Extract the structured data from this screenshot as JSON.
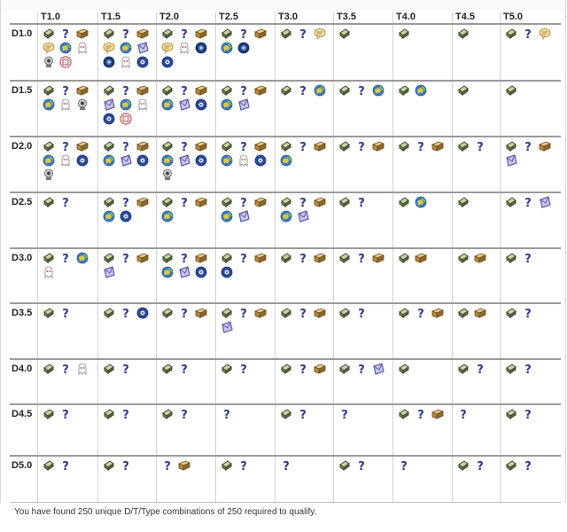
{
  "colors": {
    "traditional": "#7a8a5a",
    "mystery": "#2c3a8c",
    "multi": "#b58a3a",
    "letterbox": "#5a5aa8",
    "earthcache": "#3a7ab8",
    "wherigo": "#1a4a8a",
    "event": "#e8c070",
    "virtual": "#d05858",
    "webcam": "#7a7a7a"
  },
  "grid": {
    "columns": [
      "T1.0",
      "T1.5",
      "T2.0",
      "T2.5",
      "T3.0",
      "T3.5",
      "T4.0",
      "T4.5",
      "T5.0"
    ],
    "rows": [
      {
        "label": "D1.0",
        "cells": [
          [
            "traditional",
            "mystery",
            "multi",
            "event",
            "earthcache",
            "virtual",
            "webcam",
            "cito"
          ],
          [
            "traditional",
            "mystery",
            "multi",
            "event",
            "earthcache",
            "letterbox",
            "wherigo",
            "virtual",
            "gps"
          ],
          [
            "traditional",
            "mystery",
            "multi",
            "event",
            "virtual",
            "wherigo",
            "gps"
          ],
          [
            "traditional",
            "mystery",
            "multi",
            "earthcache",
            "wherigo"
          ],
          [
            "traditional",
            "mystery",
            "event"
          ],
          [
            "traditional"
          ],
          [
            "traditional"
          ],
          [
            "traditional"
          ],
          [
            "traditional",
            "mystery",
            "event"
          ]
        ]
      },
      {
        "label": "D1.5",
        "cells": [
          [
            "traditional",
            "mystery",
            "multi",
            "earthcache",
            "virtual",
            "webcam"
          ],
          [
            "traditional",
            "mystery",
            "multi",
            "letterbox",
            "earthcache",
            "virtual",
            "gps",
            "cito"
          ],
          [
            "traditional",
            "mystery",
            "multi",
            "earthcache",
            "letterbox",
            "gps"
          ],
          [
            "traditional",
            "mystery",
            "multi",
            "earthcache",
            "letterbox"
          ],
          [
            "traditional",
            "mystery",
            "earthcache"
          ],
          [
            "traditional",
            "mystery",
            "earthcache"
          ],
          [
            "traditional",
            "earthcache"
          ],
          [
            "traditional"
          ],
          [
            "traditional"
          ]
        ]
      },
      {
        "label": "D2.0",
        "cells": [
          [
            "traditional",
            "mystery",
            "multi",
            "earthcache",
            "virtual",
            "gps",
            "webcam"
          ],
          [
            "traditional",
            "mystery",
            "multi",
            "earthcache",
            "letterbox",
            "gps"
          ],
          [
            "traditional",
            "mystery",
            "multi",
            "earthcache",
            "letterbox",
            "gps",
            "webcam"
          ],
          [
            "traditional",
            "mystery",
            "multi",
            "earthcache",
            "virtual",
            "gps"
          ],
          [
            "traditional",
            "mystery",
            "multi",
            "earthcache"
          ],
          [
            "traditional",
            "mystery",
            "multi"
          ],
          [
            "traditional",
            "mystery",
            "multi"
          ],
          [
            "traditional",
            "mystery"
          ],
          [
            "traditional",
            "mystery",
            "multi",
            "letterbox"
          ]
        ]
      },
      {
        "label": "D2.5",
        "cells": [
          [
            "traditional",
            "mystery"
          ],
          [
            "traditional",
            "mystery",
            "multi",
            "earthcache",
            "gps"
          ],
          [
            "traditional",
            "mystery",
            "multi",
            "earthcache"
          ],
          [
            "traditional",
            "mystery",
            "multi",
            "earthcache",
            "letterbox"
          ],
          [
            "traditional",
            "mystery",
            "multi",
            "earthcache",
            "letterbox"
          ],
          [
            "traditional",
            "mystery"
          ],
          [
            "traditional",
            "earthcache"
          ],
          [
            "traditional"
          ],
          [
            "traditional",
            "mystery",
            "letterbox"
          ]
        ]
      },
      {
        "label": "D3.0",
        "cells": [
          [
            "traditional",
            "mystery",
            "earthcache",
            "virtual"
          ],
          [
            "traditional",
            "mystery",
            "multi",
            "letterbox"
          ],
          [
            "traditional",
            "mystery",
            "multi",
            "earthcache",
            "letterbox",
            "gps"
          ],
          [
            "traditional",
            "mystery",
            "multi",
            "gps"
          ],
          [
            "traditional",
            "mystery",
            "multi"
          ],
          [
            "traditional",
            "mystery",
            "multi"
          ],
          [
            "traditional",
            "multi"
          ],
          [
            "traditional",
            "multi"
          ],
          [
            "traditional",
            "mystery"
          ]
        ]
      },
      {
        "label": "D3.5",
        "cells": [
          [
            "traditional",
            "mystery"
          ],
          [
            "traditional",
            "mystery",
            "gps"
          ],
          [
            "traditional",
            "mystery",
            "multi"
          ],
          [
            "traditional",
            "mystery",
            "multi",
            "letterbox"
          ],
          [
            "traditional",
            "mystery",
            "multi"
          ],
          [
            "traditional",
            "mystery"
          ],
          [
            "traditional",
            "mystery",
            "multi"
          ],
          [
            "traditional",
            "multi"
          ],
          [
            "traditional",
            "mystery"
          ]
        ]
      },
      {
        "label": "D4.0",
        "cells": [
          [
            "traditional",
            "mystery",
            "virtual"
          ],
          [
            "traditional",
            "mystery"
          ],
          [
            "traditional",
            "mystery"
          ],
          [
            "traditional",
            "mystery"
          ],
          [
            "traditional",
            "mystery",
            "multi"
          ],
          [
            "traditional",
            "mystery",
            "letterbox"
          ],
          [
            "traditional"
          ],
          [
            "traditional",
            "mystery"
          ],
          [
            "traditional",
            "mystery"
          ]
        ]
      },
      {
        "label": "D4.5",
        "cells": [
          [
            "traditional",
            "mystery"
          ],
          [
            "traditional",
            "mystery"
          ],
          [
            "traditional",
            "mystery"
          ],
          [
            "mystery"
          ],
          [
            "traditional",
            "mystery"
          ],
          [
            "mystery"
          ],
          [
            "traditional",
            "mystery",
            "multi"
          ],
          [
            "mystery"
          ],
          [
            "traditional",
            "mystery"
          ]
        ]
      },
      {
        "label": "D5.0",
        "cells": [
          [
            "traditional",
            "mystery"
          ],
          [
            "traditional",
            "mystery"
          ],
          [
            "mystery",
            "multi"
          ],
          [
            "traditional",
            "mystery"
          ],
          [
            "mystery"
          ],
          [
            "traditional",
            "mystery"
          ],
          [
            "mystery"
          ],
          [
            "traditional",
            "mystery"
          ],
          [
            "traditional",
            "mystery"
          ]
        ]
      }
    ]
  },
  "footer": {
    "text": "You have found 250 unique D/T/Type combinations of 250 required to qualify."
  }
}
